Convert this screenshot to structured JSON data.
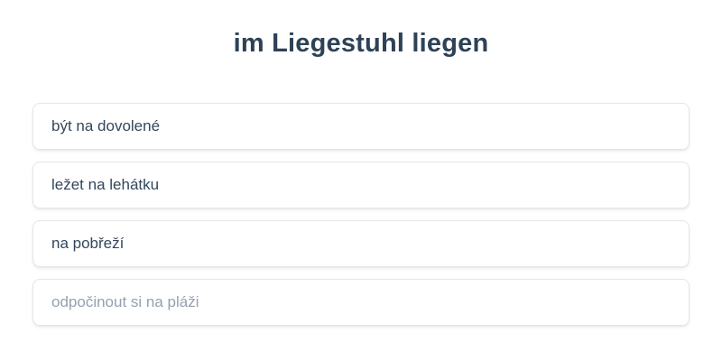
{
  "quiz": {
    "prompt": "im Liegestuhl liegen",
    "options": [
      {
        "label": "být na dovolené",
        "state": "normal"
      },
      {
        "label": "ležet na lehátku",
        "state": "normal"
      },
      {
        "label": "na pobřeží",
        "state": "normal"
      },
      {
        "label": "odpočinout si na pláži",
        "state": "muted"
      }
    ]
  },
  "colors": {
    "title_text": "#2e4256",
    "option_text": "#33475c",
    "option_muted_text": "#95a1b0",
    "card_border": "#e5e6e9",
    "background": "#ffffff"
  }
}
